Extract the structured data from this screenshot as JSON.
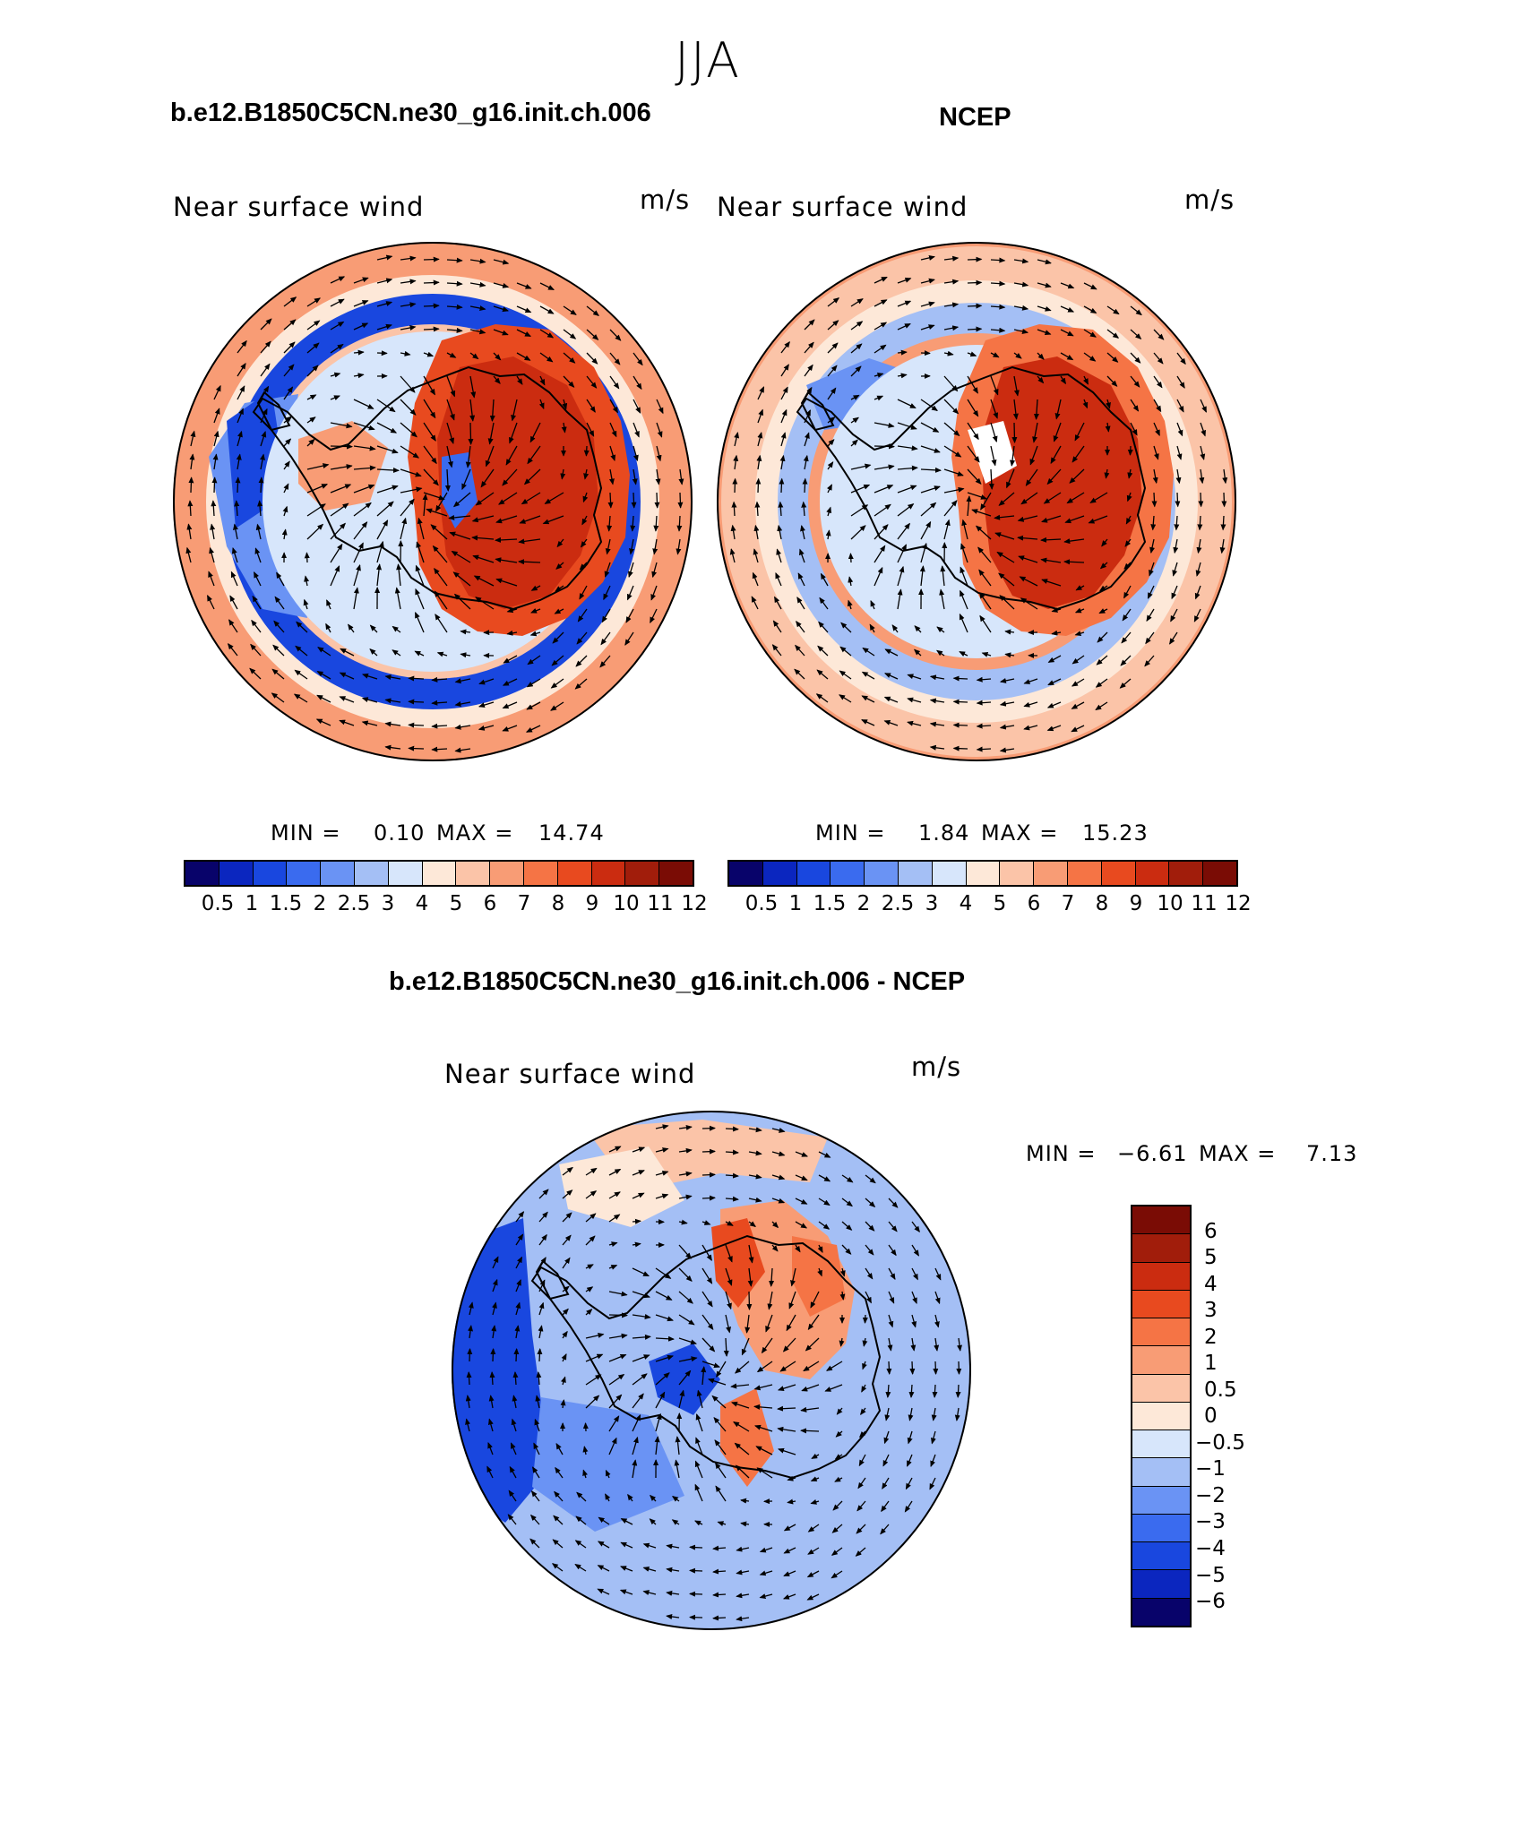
{
  "season_title": "JJA",
  "colors": {
    "positive_scale": [
      "#08036a",
      "#0b26bf",
      "#1947df",
      "#3a6bef",
      "#6a93f4",
      "#a4bff5",
      "#d7e6fb",
      "#fde8d8",
      "#fbc4a8",
      "#f89c75",
      "#f57445",
      "#e84a1f",
      "#cb2c10",
      "#a11d0b",
      "#7a0c05"
    ],
    "difference_scale": [
      "#7a0c05",
      "#a11d0b",
      "#cb2c10",
      "#e84a1f",
      "#f57445",
      "#f89c75",
      "#fbc4a8",
      "#fde8d8",
      "#d7e6fb",
      "#a4bff5",
      "#6a93f4",
      "#3a6bef",
      "#1947df",
      "#0b26bf",
      "#08036a"
    ],
    "coastline": "#000000"
  },
  "panels": [
    {
      "title": "b.e12.B1850C5CN.ne30_g16.init.ch.006",
      "variable": "Near surface wind",
      "units": "m/s",
      "min_label": "MIN =",
      "min_value": "0.10",
      "max_label": "MAX =",
      "max_value": "14.74",
      "colorbar_labels": [
        "0.5",
        "1",
        "1.5",
        "2",
        "2.5",
        "3",
        "4",
        "5",
        "6",
        "7",
        "8",
        "9",
        "10",
        "11",
        "12"
      ]
    },
    {
      "title": "NCEP",
      "variable": "Near surface wind",
      "units": "m/s",
      "min_label": "MIN =",
      "min_value": "1.84",
      "max_label": "MAX =",
      "max_value": "15.23",
      "colorbar_labels": [
        "0.5",
        "1",
        "1.5",
        "2",
        "2.5",
        "3",
        "4",
        "5",
        "6",
        "7",
        "8",
        "9",
        "10",
        "11",
        "12"
      ]
    },
    {
      "title": "b.e12.B1850C5CN.ne30_g16.init.ch.006 - NCEP",
      "variable": "Near surface wind",
      "units": "m/s",
      "min_label": "MIN =",
      "min_value": "−6.61",
      "max_label": "MAX =",
      "max_value": "7.13",
      "colorbar_labels": [
        "6",
        "5",
        "4",
        "3",
        "2",
        "1",
        "0.5",
        "0",
        "−0.5",
        "−1",
        "−2",
        "−3",
        "−4",
        "−5",
        "−6"
      ]
    }
  ]
}
